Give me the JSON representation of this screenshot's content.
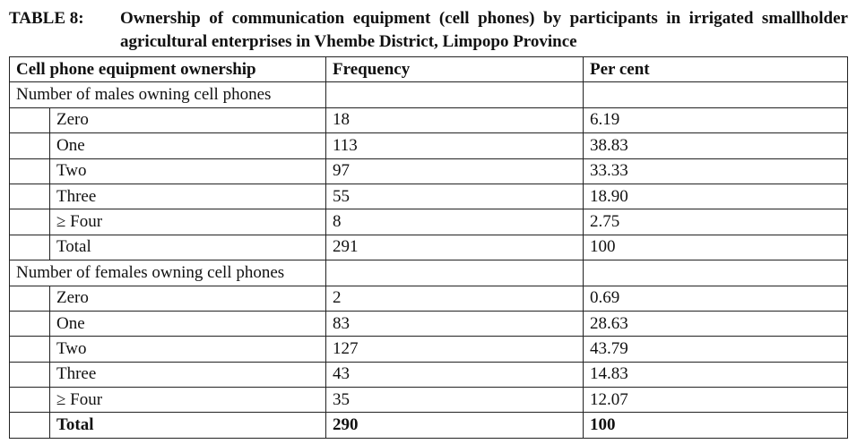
{
  "caption": {
    "label": "TABLE 8:",
    "text": "Ownership of communication equipment (cell phones) by participants in irrigated smallholder agricultural enterprises in Vhembe District, Limpopo Province"
  },
  "table": {
    "headers": [
      "Cell phone equipment ownership",
      "Frequency",
      "Per cent"
    ],
    "groups": [
      {
        "title": "Number of males owning cell phones",
        "rows": [
          {
            "label": "Zero",
            "frequency": "18",
            "percent": "6.19"
          },
          {
            "label": "One",
            "frequency": "113",
            "percent": "38.83"
          },
          {
            "label": "Two",
            "frequency": "97",
            "percent": "33.33"
          },
          {
            "label": "Three",
            "frequency": "55",
            "percent": "18.90"
          },
          {
            "label": "≥ Four",
            "frequency": "8",
            "percent": "2.75"
          },
          {
            "label": "Total",
            "frequency": "291",
            "percent": "100"
          }
        ]
      },
      {
        "title": "Number of females owning cell phones",
        "rows": [
          {
            "label": "Zero",
            "frequency": "2",
            "percent": "0.69"
          },
          {
            "label": "One",
            "frequency": "83",
            "percent": "28.63"
          },
          {
            "label": "Two",
            "frequency": "127",
            "percent": "43.79"
          },
          {
            "label": "Three",
            "frequency": "43",
            "percent": "14.83"
          },
          {
            "label": "≥ Four",
            "frequency": "35",
            "percent": "12.07"
          },
          {
            "label": "Total",
            "frequency": "290",
            "percent": "100"
          }
        ]
      }
    ]
  }
}
